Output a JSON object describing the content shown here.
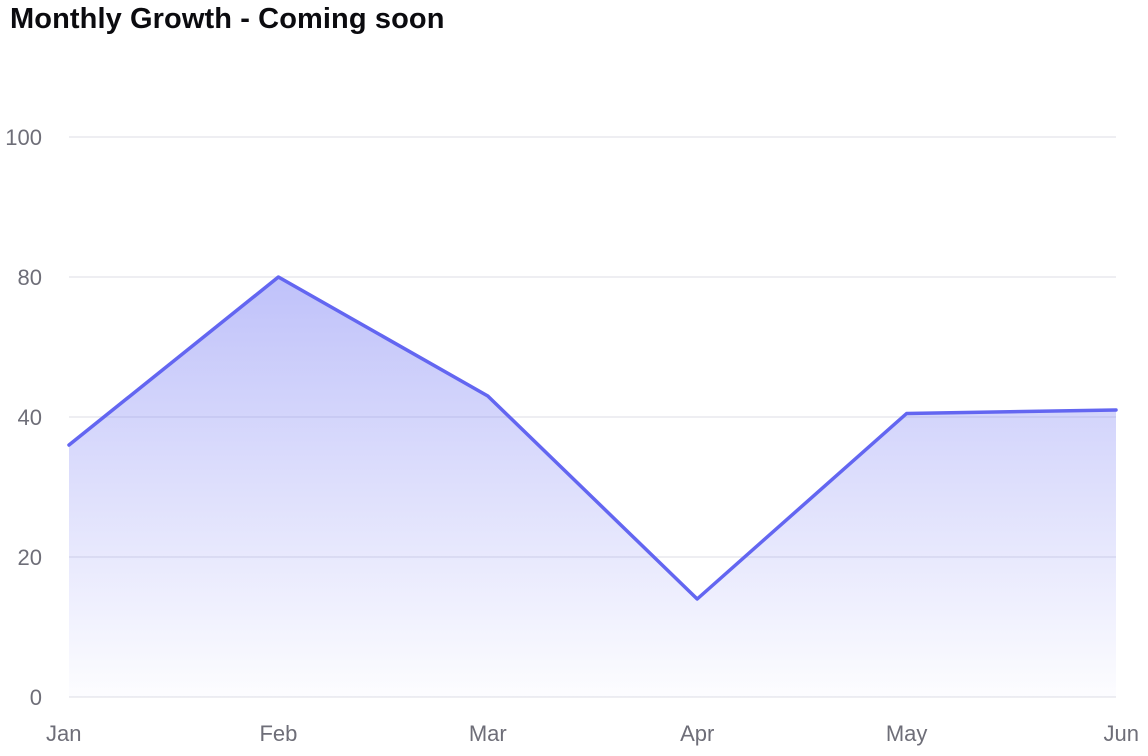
{
  "chart_data": {
    "type": "area",
    "title": "Monthly Growth - Coming soon",
    "categories": [
      "Jan",
      "Feb",
      "Mar",
      "Apr",
      "May",
      "Jun"
    ],
    "series": [
      {
        "values": [
          36,
          80,
          46,
          14,
          41,
          42
        ]
      }
    ],
    "y_ticks": [
      {
        "value": 0,
        "label": "0"
      },
      {
        "value": 20,
        "label": "20"
      },
      {
        "value": 40,
        "label": "40"
      },
      {
        "value": 80,
        "label": "80"
      },
      {
        "value": 100,
        "label": "100"
      }
    ],
    "ylim": [
      0,
      100
    ],
    "grid": true,
    "legend": "none",
    "colors": {
      "line": "#6366f1",
      "fill": "#8b8ff5",
      "grid": "#e8e8ee",
      "tick": "#6e6e78"
    }
  }
}
